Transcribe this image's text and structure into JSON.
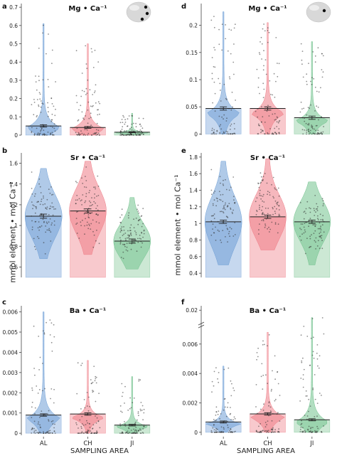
{
  "figure": {
    "y_axis_label": "mmol element • mol Ca⁻¹",
    "x_axis_label": "SAMPLING AREA",
    "categories": [
      "AL",
      "CH",
      "JI"
    ],
    "category_colors": [
      "#6f9fd6",
      "#ef7c86",
      "#72c28e"
    ],
    "category_colors_light": [
      "#c6d8ef",
      "#f8c9cd",
      "#cce8d4"
    ]
  },
  "chart_data": [
    {
      "panel": "a",
      "title": "Mg • Ca⁻¹",
      "type": "violin-bar",
      "categories": [
        "AL",
        "CH",
        "JI"
      ],
      "means": [
        0.05,
        0.042,
        0.016
      ],
      "se": [
        0.006,
        0.005,
        0.003
      ],
      "maxima": [
        0.61,
        0.5,
        0.12
      ],
      "ylim": [
        0,
        0.72
      ],
      "yticks": [
        "0",
        "0.1",
        "0.2",
        "0.3",
        "0.4",
        "0.5",
        "0.6",
        "0.7"
      ],
      "ytick_values": [
        0,
        0.1,
        0.2,
        0.3,
        0.4,
        0.5,
        0.6,
        0.7
      ],
      "inset_map": true
    },
    {
      "panel": "b",
      "title": "Sr • Ca⁻¹",
      "type": "violin-bar",
      "categories": [
        "AL",
        "CH",
        "JI"
      ],
      "means": [
        1.09,
        1.14,
        0.85
      ],
      "se": [
        0.02,
        0.02,
        0.02
      ],
      "ranges": [
        [
          0.68,
          1.55
        ],
        [
          0.72,
          1.62
        ],
        [
          0.58,
          1.27
        ]
      ],
      "ylim": [
        0.5,
        1.7
      ],
      "yticks": [
        "0.6",
        "0.8",
        "1",
        "1.2",
        "1.4",
        "1.6"
      ],
      "ytick_values": [
        0.6,
        0.8,
        1.0,
        1.2,
        1.4,
        1.6
      ]
    },
    {
      "panel": "c",
      "title": "Ba • Ca⁻¹",
      "type": "violin-bar",
      "categories": [
        "AL",
        "CH",
        "JI"
      ],
      "means": [
        0.0009,
        0.00095,
        0.0004
      ],
      "se": [
        6e-05,
        6e-05,
        4e-05
      ],
      "maxima": [
        0.006,
        0.0036,
        0.0028
      ],
      "ylim": [
        -0.0001,
        0.0063
      ],
      "yticks": [
        "0",
        "0.001",
        "0.002",
        "0.003",
        "0.004",
        "0.005",
        "0.006"
      ],
      "ytick_values": [
        0,
        0.001,
        0.002,
        0.003,
        0.004,
        0.005,
        0.006
      ]
    },
    {
      "panel": "d",
      "title": "Mg • Ca⁻¹",
      "type": "violin-bar",
      "categories": [
        "AL",
        "CH",
        "JI"
      ],
      "means": [
        0.047,
        0.047,
        0.03
      ],
      "se": [
        0.003,
        0.003,
        0.003
      ],
      "maxima": [
        0.225,
        0.205,
        0.17
      ],
      "ylim": [
        -0.002,
        0.24
      ],
      "yticks": [
        "0",
        "0.05",
        "0.1",
        "0.15",
        "0.2"
      ],
      "ytick_values": [
        0,
        0.05,
        0.1,
        0.15,
        0.2
      ],
      "inset_map": true
    },
    {
      "panel": "e",
      "title": "Sr • Ca⁻¹",
      "type": "violin-bar",
      "categories": [
        "AL",
        "CH",
        "JI"
      ],
      "means": [
        1.02,
        1.08,
        1.02
      ],
      "se": [
        0.02,
        0.02,
        0.02
      ],
      "ranges": [
        [
          0.5,
          1.75
        ],
        [
          0.68,
          1.78
        ],
        [
          0.5,
          1.5
        ]
      ],
      "ylim": [
        0.35,
        1.85
      ],
      "yticks": [
        "0.4",
        "0.6",
        "0.8",
        "1",
        "1.2",
        "1.4",
        "1.6",
        "1.8"
      ],
      "ytick_values": [
        0.4,
        0.6,
        0.8,
        1.0,
        1.2,
        1.4,
        1.6,
        1.8
      ]
    },
    {
      "panel": "f",
      "title": "Ba • Ca⁻¹",
      "type": "violin-bar",
      "categories": [
        "AL",
        "CH",
        "JI"
      ],
      "means": [
        0.0007,
        0.00125,
        0.00085
      ],
      "se": [
        7e-05,
        8e-05,
        7e-05
      ],
      "maxima": [
        0.0045,
        0.0068,
        0.0078
      ],
      "ylim": [
        -0.0002,
        0.0086
      ],
      "yticks": [
        "0",
        "0.002",
        "0.004",
        "0.006",
        "0.02"
      ],
      "ytick_values": [
        0,
        0.002,
        0.004,
        0.006,
        0.0083
      ],
      "axis_break": true
    }
  ]
}
